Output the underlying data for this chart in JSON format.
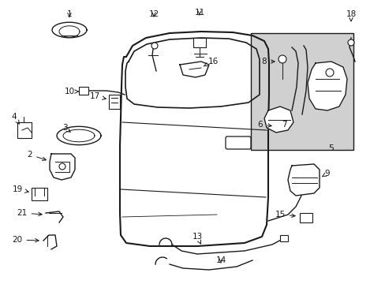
{
  "bg_color": "#ffffff",
  "fig_width": 4.89,
  "fig_height": 3.6,
  "dpi": 100,
  "shaded_color": "#d0d0d0",
  "line_color": "#1a1a1a",
  "label_fontsize": 7.5
}
